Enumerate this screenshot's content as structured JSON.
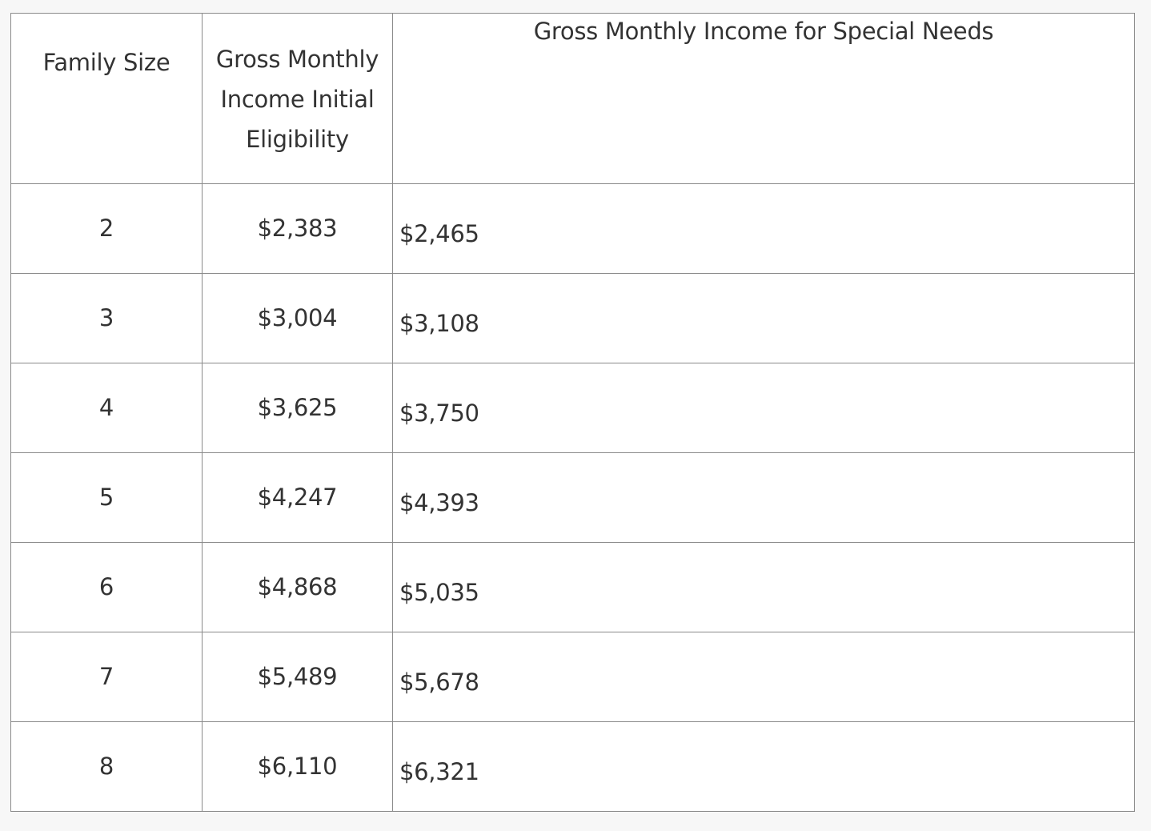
{
  "table": {
    "headers": {
      "family_size": "Family Size",
      "initial_eligibility": "Gross Monthly Income Initial Eligibility",
      "special_needs": "Gross Monthly Income for Special Needs"
    },
    "rows": [
      {
        "family_size": "2",
        "initial_eligibility": "$2,383",
        "special_needs": "$2,465"
      },
      {
        "family_size": "3",
        "initial_eligibility": "$3,004",
        "special_needs": "$3,108"
      },
      {
        "family_size": "4",
        "initial_eligibility": "$3,625",
        "special_needs": "$3,750"
      },
      {
        "family_size": "5",
        "initial_eligibility": "$4,247",
        "special_needs": "$4,393"
      },
      {
        "family_size": "6",
        "initial_eligibility": "$4,868",
        "special_needs": "$5,035"
      },
      {
        "family_size": "7",
        "initial_eligibility": "$5,489",
        "special_needs": "$5,678"
      },
      {
        "family_size": "8",
        "initial_eligibility": "$6,110",
        "special_needs": "$6,321"
      }
    ]
  }
}
